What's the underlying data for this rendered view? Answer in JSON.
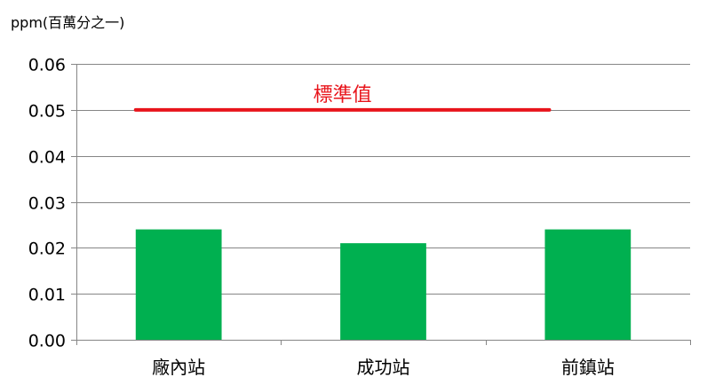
{
  "chart_data": {
    "type": "bar",
    "unit_label": "ppm(百萬分之一)",
    "categories": [
      "廠內站",
      "成功站",
      "前鎮站"
    ],
    "values": [
      0.024,
      0.021,
      0.024
    ],
    "ylim": [
      0,
      0.06
    ],
    "yticks": [
      "0.00",
      "0.01",
      "0.02",
      "0.03",
      "0.04",
      "0.05",
      "0.06"
    ],
    "grid": true,
    "standard": {
      "label": "標準值",
      "value": 0.05,
      "color": "#e8141b"
    },
    "colors": {
      "bar": "#00b050",
      "grid": "#868686",
      "axis": "#868686"
    }
  }
}
